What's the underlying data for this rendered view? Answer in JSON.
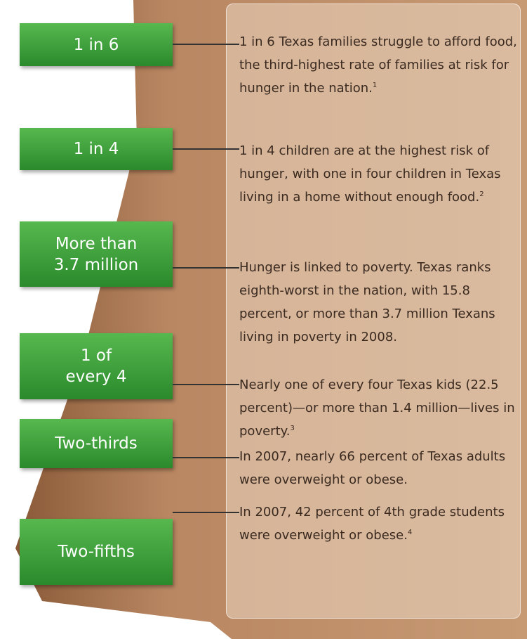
{
  "items": [
    {
      "label_lines": [
        "1 in 6"
      ],
      "text": "1 in 6 Texas families struggle to afford food, the third-highest rate of families at risk for hunger in the nation.",
      "note": "1"
    },
    {
      "label_lines": [
        "1 in 4"
      ],
      "text": "1 in 4 children are at the highest risk of hunger, with one in four children in Texas living in a home without enough food.",
      "note": "2"
    },
    {
      "label_lines": [
        "More than",
        "3.7 million"
      ],
      "text": "Hunger is linked to poverty.  Texas ranks eighth-worst in the nation, with 15.8 percent, or more than 3.7 million Texans living in poverty in 2008."
    },
    {
      "label_lines": [
        "1 of",
        "every 4"
      ],
      "text": "Nearly one of every four Texas kids (22.5 percent)—or more than 1.4 million—lives in poverty.",
      "note": "3"
    },
    {
      "label_lines": [
        "Two-thirds"
      ],
      "text": "In 2007, nearly 66 percent of Texas adults were overweight or obese."
    },
    {
      "label_lines": [
        "Two-fifths"
      ],
      "text": "In 2007, 42 percent of 4th grade students were overweight or obese.",
      "note": "4"
    }
  ]
}
